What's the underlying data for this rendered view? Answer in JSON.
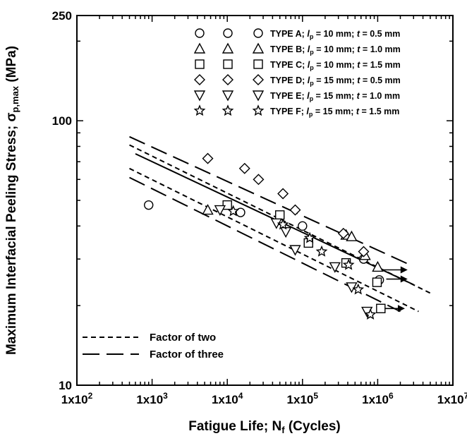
{
  "chart_data": {
    "type": "scatter",
    "xlabel": "Fatigue Life; N",
    "xlabel_sub": "f",
    "xlabel_tail": " (Cycles)",
    "ylabel": "Maximum Interfacial Peeling Stress; σ",
    "ylabel_sub": "p,max",
    "ylabel_tail": " (MPa)",
    "x_scale": "log",
    "y_scale": "log",
    "xlim": [
      100,
      10000000
    ],
    "ylim": [
      10,
      250
    ],
    "x_ticks": [
      {
        "value": 100,
        "label": "1x10",
        "exp": "2"
      },
      {
        "value": 1000,
        "label": "1x10",
        "exp": "3"
      },
      {
        "value": 10000,
        "label": "1x10",
        "exp": "4"
      },
      {
        "value": 100000,
        "label": "1x10",
        "exp": "5"
      },
      {
        "value": 1000000,
        "label": "1x10",
        "exp": "6"
      },
      {
        "value": 10000000,
        "label": "1x10",
        "exp": "7"
      }
    ],
    "y_ticks": [
      {
        "value": 10,
        "label": "10"
      },
      {
        "value": 100,
        "label": "100"
      },
      {
        "value": 250,
        "label": "250"
      }
    ],
    "legend_position": "top-right",
    "series": [
      {
        "name": "TYPE A; ",
        "lp": "10 mm",
        "t": "0.5 mm",
        "marker": "circle",
        "points": [
          [
            900,
            48
          ],
          [
            15000,
            45
          ],
          [
            100000,
            40
          ],
          [
            650000,
            30
          ],
          [
            1050000,
            25
          ]
        ]
      },
      {
        "name": "TYPE B; ",
        "lp": "10 mm",
        "t": "1.0 mm",
        "marker": "triangle-up",
        "points": [
          [
            5500,
            46
          ],
          [
            50000,
            42
          ],
          [
            380000,
            37
          ],
          [
            450000,
            36.5
          ],
          [
            680000,
            31
          ],
          [
            1000000,
            28
          ]
        ]
      },
      {
        "name": "TYPE C; ",
        "lp": "10 mm",
        "t": "1.5 mm",
        "marker": "square",
        "points": [
          [
            10000,
            48
          ],
          [
            50000,
            44
          ],
          [
            120000,
            34.5
          ],
          [
            380000,
            29
          ],
          [
            980000,
            24.5
          ],
          [
            1100000,
            19.5
          ]
        ]
      },
      {
        "name": "TYPE D; ",
        "lp": "15 mm",
        "t": "0.5 mm",
        "marker": "diamond",
        "points": [
          [
            5500,
            72
          ],
          [
            17000,
            66
          ],
          [
            26000,
            60
          ],
          [
            55000,
            53
          ],
          [
            80000,
            46
          ],
          [
            350000,
            37.5
          ],
          [
            650000,
            32
          ]
        ]
      },
      {
        "name": "TYPE E; ",
        "lp": "15 mm",
        "t": "1.0 mm",
        "marker": "triangle-down",
        "points": [
          [
            8000,
            46
          ],
          [
            45000,
            41
          ],
          [
            60000,
            38
          ],
          [
            80000,
            32.5
          ],
          [
            270000,
            28
          ],
          [
            450000,
            23.5
          ],
          [
            720000,
            19
          ]
        ]
      },
      {
        "name": "TYPE F; ",
        "lp": "15 mm",
        "t": "1.5 mm",
        "marker": "star",
        "points": [
          [
            12000,
            45.5
          ],
          [
            55000,
            40.5
          ],
          [
            125000,
            36
          ],
          [
            180000,
            32
          ],
          [
            410000,
            28.5
          ],
          [
            550000,
            23
          ],
          [
            800000,
            18.5
          ]
        ]
      }
    ],
    "runouts": [
      {
        "from": [
          1000000,
          27.3
        ],
        "to": [
          2500000,
          27.3
        ]
      },
      {
        "from": [
          1300000,
          25.2
        ],
        "to": [
          2500000,
          25.2
        ]
      },
      {
        "from": [
          1100000,
          19.5
        ],
        "to": [
          2300000,
          19.5
        ]
      }
    ],
    "mean_line": {
      "from": [
        600,
        75
      ],
      "to": [
        3000000,
        24
      ]
    },
    "factor_two_lines": [
      {
        "from": [
          500,
          81
        ],
        "to": [
          5000000,
          22.3
        ]
      },
      {
        "from": [
          500,
          66
        ],
        "to": [
          3500000,
          19
        ]
      }
    ],
    "factor_three_lines": [
      {
        "from": [
          500,
          87
        ],
        "to": [
          2700000,
          28.5
        ]
      },
      {
        "from": [
          500,
          61
        ],
        "to": [
          2000000,
          19
        ]
      }
    ],
    "band_legend": [
      {
        "label": "Factor of two",
        "style": "short-dash"
      },
      {
        "label": "Factor of three",
        "style": "long-dash"
      }
    ],
    "legend_lp_symbol": "l",
    "legend_lp_sub": "p",
    "legend_t_symbol": "t"
  }
}
